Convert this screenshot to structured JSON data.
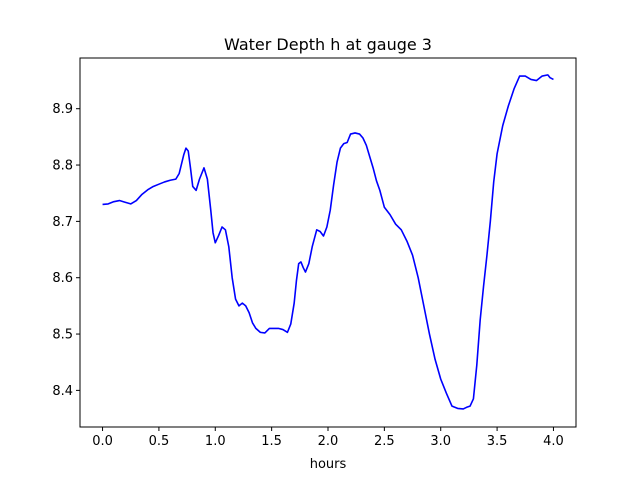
{
  "chart_data": {
    "type": "line",
    "title": "Water Depth h at gauge 3",
    "xlabel": "hours",
    "ylabel": "",
    "xlim": [
      -0.2,
      4.2
    ],
    "ylim": [
      8.335,
      8.99
    ],
    "xticks": [
      0.0,
      0.5,
      1.0,
      1.5,
      2.0,
      2.5,
      3.0,
      3.5,
      4.0
    ],
    "xtick_labels": [
      "0.0",
      "0.5",
      "1.0",
      "1.5",
      "2.0",
      "2.5",
      "3.0",
      "3.5",
      "4.0"
    ],
    "yticks": [
      8.4,
      8.5,
      8.6,
      8.7,
      8.8,
      8.9
    ],
    "ytick_labels": [
      "8.4",
      "8.5",
      "8.6",
      "8.7",
      "8.8",
      "8.9"
    ],
    "grid": false,
    "line_color": "#0000ff",
    "series": [
      {
        "x": [
          0.0,
          0.05,
          0.1,
          0.15,
          0.2,
          0.25,
          0.3,
          0.35,
          0.4,
          0.45,
          0.5,
          0.55,
          0.6,
          0.65,
          0.68,
          0.72,
          0.74,
          0.76,
          0.78,
          0.8,
          0.83,
          0.86,
          0.9,
          0.93,
          0.96,
          0.98,
          1.0,
          1.03,
          1.06,
          1.09,
          1.12,
          1.15,
          1.18,
          1.21,
          1.24,
          1.27,
          1.3,
          1.33,
          1.36,
          1.4,
          1.44,
          1.48,
          1.52,
          1.56,
          1.6,
          1.64,
          1.67,
          1.7,
          1.72,
          1.74,
          1.76,
          1.78,
          1.8,
          1.83,
          1.86,
          1.9,
          1.93,
          1.96,
          1.99,
          2.02,
          2.05,
          2.08,
          2.11,
          2.14,
          2.17,
          2.2,
          2.24,
          2.28,
          2.31,
          2.34,
          2.37,
          2.4,
          2.43,
          2.46,
          2.5,
          2.55,
          2.6,
          2.65,
          2.7,
          2.75,
          2.8,
          2.85,
          2.9,
          2.95,
          3.0,
          3.05,
          3.1,
          3.15,
          3.2,
          3.23,
          3.26,
          3.29,
          3.32,
          3.35,
          3.38,
          3.41,
          3.44,
          3.47,
          3.5,
          3.55,
          3.6,
          3.65,
          3.7,
          3.75,
          3.8,
          3.85,
          3.9,
          3.95,
          3.97,
          4.0
        ],
        "y": [
          8.73,
          8.731,
          8.735,
          8.737,
          8.734,
          8.731,
          8.737,
          8.748,
          8.756,
          8.762,
          8.766,
          8.77,
          8.773,
          8.775,
          8.785,
          8.818,
          8.83,
          8.825,
          8.795,
          8.762,
          8.755,
          8.775,
          8.795,
          8.775,
          8.72,
          8.68,
          8.662,
          8.675,
          8.69,
          8.685,
          8.655,
          8.6,
          8.562,
          8.55,
          8.555,
          8.55,
          8.538,
          8.52,
          8.51,
          8.503,
          8.502,
          8.51,
          8.51,
          8.51,
          8.508,
          8.503,
          8.518,
          8.555,
          8.595,
          8.625,
          8.628,
          8.618,
          8.61,
          8.625,
          8.655,
          8.685,
          8.682,
          8.674,
          8.69,
          8.72,
          8.765,
          8.805,
          8.83,
          8.838,
          8.84,
          8.855,
          8.857,
          8.855,
          8.848,
          8.835,
          8.815,
          8.795,
          8.772,
          8.755,
          8.725,
          8.712,
          8.695,
          8.685,
          8.665,
          8.64,
          8.6,
          8.55,
          8.5,
          8.455,
          8.42,
          8.395,
          8.372,
          8.368,
          8.367,
          8.37,
          8.372,
          8.385,
          8.445,
          8.525,
          8.585,
          8.64,
          8.7,
          8.77,
          8.82,
          8.87,
          8.905,
          8.935,
          8.958,
          8.958,
          8.952,
          8.95,
          8.958,
          8.96,
          8.955,
          8.952
        ]
      }
    ]
  }
}
